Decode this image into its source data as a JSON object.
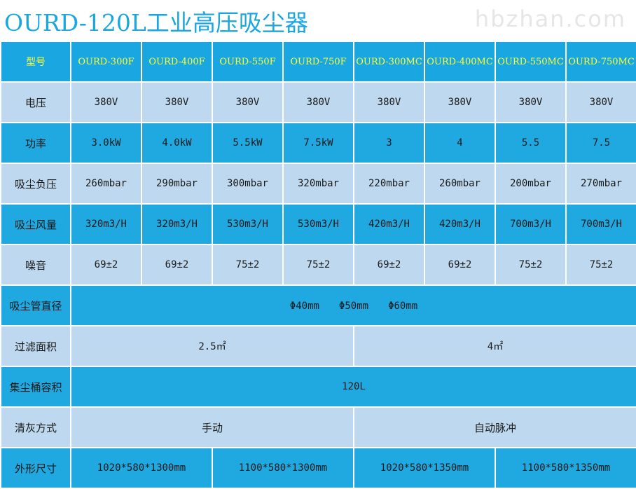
{
  "title": "OURD-120L工业高压吸尘器",
  "watermark": "hbzhan.com",
  "header": {
    "label": "型号",
    "models": [
      "OURD-300F",
      "OURD-400F",
      "OURD-550F",
      "OURD-750F",
      "OURD-300MC",
      "OURD-400MC",
      "OURD-550MC",
      "OURD-750MC"
    ]
  },
  "rows": {
    "voltage": {
      "label": "电压",
      "values": [
        "380V",
        "380V",
        "380V",
        "380V",
        "380V",
        "380V",
        "380V",
        "380V"
      ]
    },
    "power": {
      "label": "功率",
      "values": [
        "3.0kW",
        "4.0kW",
        "5.5kW",
        "7.5kW",
        "3",
        "4",
        "5.5",
        "7.5"
      ]
    },
    "suction_pressure": {
      "label": "吸尘负压",
      "values": [
        "260mbar",
        "290mbar",
        "300mbar",
        "320mbar",
        "220mbar",
        "260mbar",
        "200mbar",
        "270mbar"
      ]
    },
    "airflow": {
      "label": "吸尘风量",
      "values": [
        "320m3/H",
        "320m3/H",
        "530m3/H",
        "530m3/H",
        "420m3/H",
        "420m3/H",
        "700m3/H",
        "700m3/H"
      ]
    },
    "noise": {
      "label": "噪音",
      "values": [
        "69±2",
        "69±2",
        "75±2",
        "75±2",
        "69±2",
        "69±2",
        "75±2",
        "75±2"
      ]
    },
    "hose_diameter": {
      "label": "吸尘管直径",
      "value": "Φ40mm　　Φ50mm　　Φ60mm"
    },
    "filter_area": {
      "label": "过滤面积",
      "values": [
        "2.5㎡",
        "4㎡"
      ]
    },
    "bin_volume": {
      "label": "集尘桶容积",
      "value": "120L"
    },
    "cleaning": {
      "label": "清灰方式",
      "values": [
        "手动",
        "自动脉冲"
      ]
    },
    "dimensions": {
      "label": "外形尺寸",
      "values": [
        "1020*580*1300mm",
        "1100*580*1300mm",
        "1020*580*1350mm",
        "1100*580*1350mm"
      ]
    }
  }
}
